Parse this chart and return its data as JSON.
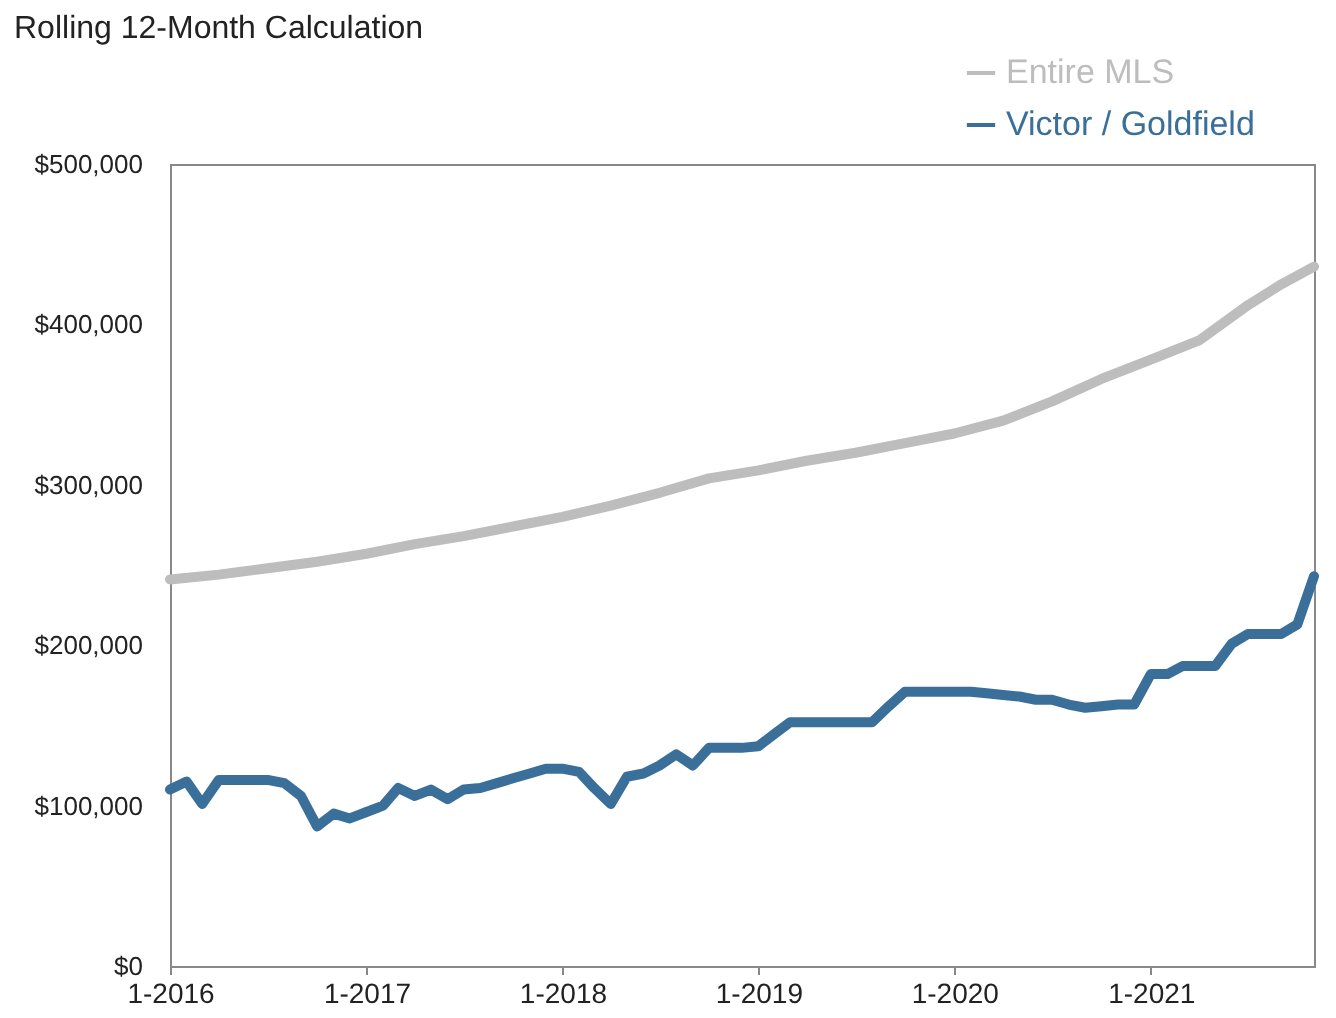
{
  "chart_data": {
    "type": "line",
    "title": "Rolling 12-Month Calculation",
    "x": [
      "2016-01",
      "2016-02",
      "2016-03",
      "2016-04",
      "2016-05",
      "2016-06",
      "2016-07",
      "2016-08",
      "2016-09",
      "2016-10",
      "2016-11",
      "2016-12",
      "2017-01",
      "2017-02",
      "2017-03",
      "2017-04",
      "2017-05",
      "2017-06",
      "2017-07",
      "2017-08",
      "2017-09",
      "2017-10",
      "2017-11",
      "2017-12",
      "2018-01",
      "2018-02",
      "2018-03",
      "2018-04",
      "2018-05",
      "2018-06",
      "2018-07",
      "2018-08",
      "2018-09",
      "2018-10",
      "2018-11",
      "2018-12",
      "2019-01",
      "2019-02",
      "2019-03",
      "2019-04",
      "2019-05",
      "2019-06",
      "2019-07",
      "2019-08",
      "2019-09",
      "2019-10",
      "2019-11",
      "2019-12",
      "2020-01",
      "2020-02",
      "2020-03",
      "2020-04",
      "2020-05",
      "2020-06",
      "2020-07",
      "2020-08",
      "2020-09",
      "2020-10",
      "2020-11",
      "2020-12",
      "2021-01",
      "2021-02",
      "2021-03",
      "2021-04",
      "2021-05",
      "2021-06",
      "2021-07",
      "2021-08",
      "2021-09",
      "2021-10",
      "2021-11"
    ],
    "series": [
      {
        "name": "Entire MLS",
        "color": "#bdbdbd",
        "x": [
          "2016-01",
          "2016-04",
          "2016-07",
          "2016-10",
          "2017-01",
          "2017-04",
          "2017-07",
          "2017-10",
          "2018-01",
          "2018-04",
          "2018-07",
          "2018-10",
          "2019-01",
          "2019-04",
          "2019-07",
          "2019-10",
          "2020-01",
          "2020-04",
          "2020-07",
          "2020-10",
          "2021-01",
          "2021-04",
          "2021-07",
          "2021-09",
          "2021-11"
        ],
        "values": [
          241000,
          244000,
          248000,
          252000,
          257000,
          263000,
          268000,
          274000,
          280000,
          287000,
          295000,
          304000,
          309000,
          315000,
          320000,
          326000,
          332000,
          340000,
          352000,
          366000,
          378000,
          390000,
          412000,
          425000,
          436000
        ]
      },
      {
        "name": "Victor / Goldfield",
        "color": "#3a6f99",
        "values": [
          110000,
          115000,
          101000,
          116000,
          116000,
          116000,
          116000,
          114000,
          106000,
          87000,
          95000,
          92000,
          96000,
          100000,
          111000,
          106000,
          110000,
          104000,
          110000,
          111000,
          114000,
          117000,
          120000,
          123000,
          123000,
          121000,
          111000,
          101000,
          118000,
          120000,
          125000,
          132000,
          125000,
          136000,
          136000,
          136000,
          137000,
          145000,
          152000,
          152000,
          152000,
          152000,
          152000,
          152000,
          162000,
          171000,
          171000,
          171000,
          171000,
          171000,
          170000,
          169000,
          168000,
          166000,
          166000,
          163000,
          161000,
          162000,
          163000,
          163000,
          182000,
          182000,
          187000,
          187000,
          187000,
          201000,
          207000,
          207000,
          207000,
          213000,
          243000
        ]
      }
    ],
    "xlim": [
      "2016-01",
      "2021-11"
    ],
    "xticks": [
      {
        "value": "2016-01",
        "label": "1-2016"
      },
      {
        "value": "2017-01",
        "label": "1-2017"
      },
      {
        "value": "2018-01",
        "label": "1-2018"
      },
      {
        "value": "2019-01",
        "label": "1-2019"
      },
      {
        "value": "2020-01",
        "label": "1-2020"
      },
      {
        "value": "2021-01",
        "label": "1-2021"
      }
    ],
    "ylim": [
      0,
      500000
    ],
    "yticks": [
      {
        "value": 0,
        "label": "$0"
      },
      {
        "value": 100000,
        "label": "$100,000"
      },
      {
        "value": 200000,
        "label": "$200,000"
      },
      {
        "value": 300000,
        "label": "$300,000"
      },
      {
        "value": 400000,
        "label": "$400,000"
      },
      {
        "value": 500000,
        "label": "$500,000"
      }
    ],
    "legend": "top right",
    "grid": false
  }
}
